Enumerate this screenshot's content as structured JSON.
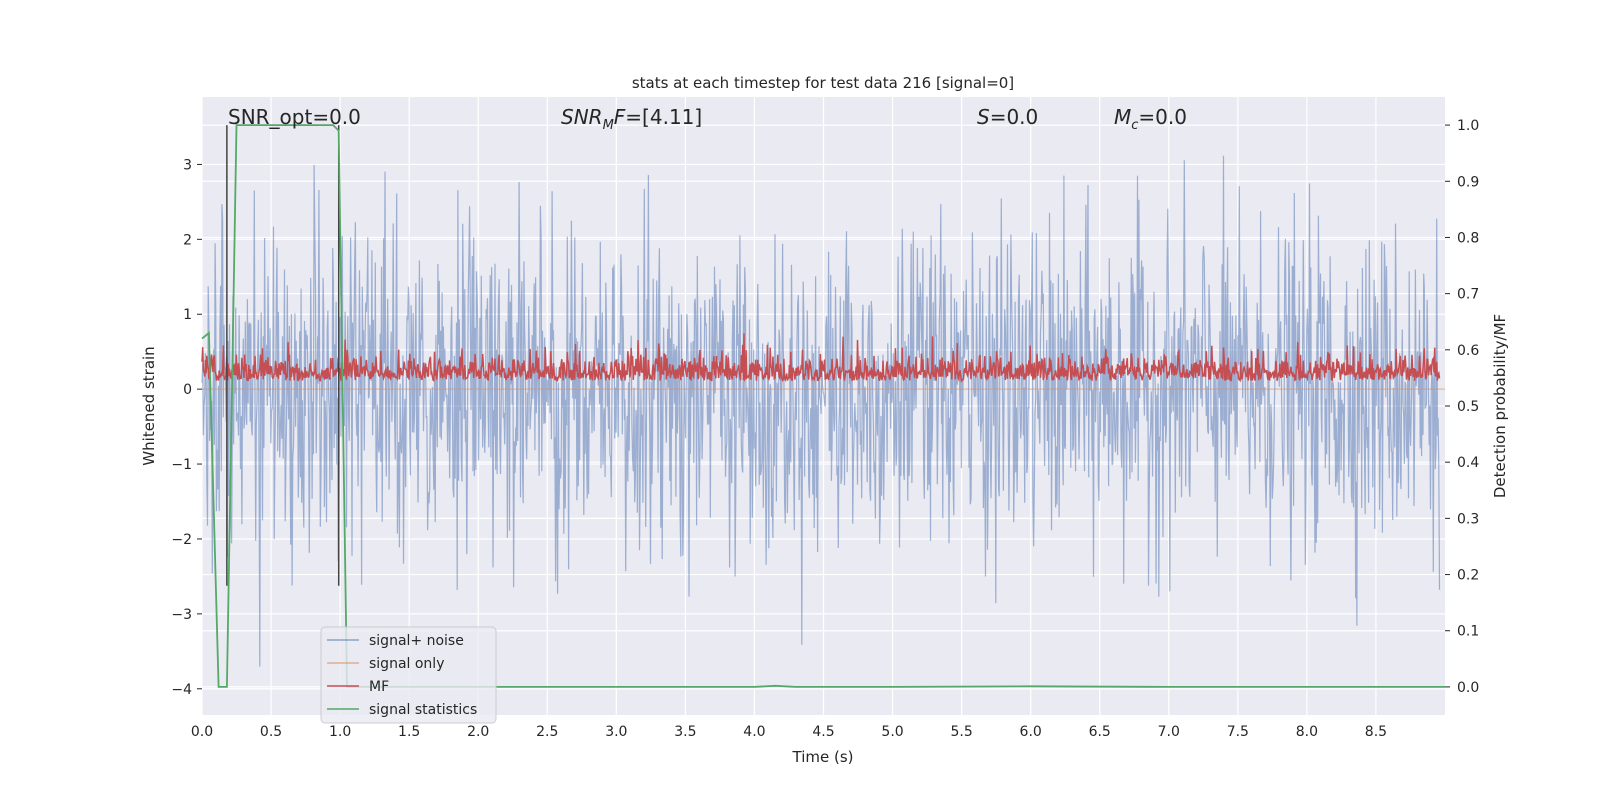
{
  "chart_data": {
    "type": "line",
    "title": "stats at each timestep for test data 216 [signal=0]",
    "xlabel": "Time (s)",
    "ylabel": "Whitened strain",
    "y2label": "Detection probability/MF",
    "xlim": [
      0.0,
      9.0
    ],
    "ylim": [
      -4.35,
      3.9
    ],
    "y2lim": [
      -0.05,
      1.05
    ],
    "grid": true,
    "legend_loc": "lower left",
    "xticks": [
      "0.0",
      "0.5",
      "1.0",
      "1.5",
      "2.0",
      "2.5",
      "3.0",
      "3.5",
      "4.0",
      "4.5",
      "5.0",
      "5.5",
      "6.0",
      "6.5",
      "7.0",
      "7.5",
      "8.0",
      "8.5"
    ],
    "yticks": [
      "−4",
      "−3",
      "−2",
      "−1",
      "0",
      "1",
      "2",
      "3"
    ],
    "y2ticks": [
      "0.0",
      "0.1",
      "0.2",
      "0.3",
      "0.4",
      "0.5",
      "0.6",
      "0.7",
      "0.8",
      "0.9",
      "1.0"
    ],
    "annotations": [
      {
        "id": "snr_opt",
        "text": "SNR_opt=0.0"
      },
      {
        "id": "snr_mf",
        "text": "=[4.11]",
        "math_base": "SNR",
        "math_sub": "M",
        "math_tail": "F"
      },
      {
        "id": "s",
        "text": "=0.0",
        "math_base": "S"
      },
      {
        "id": "mc",
        "text": "=0.0",
        "math_base": "M",
        "math_sub": "c"
      }
    ],
    "vertical_markers_x": [
      0.18,
      0.99
    ],
    "series": [
      {
        "name": "signal+ noise",
        "color": "#4c72b0",
        "alpha": 0.5,
        "axis": "left",
        "description_values": {
          "n_samples": 1800,
          "typical_low": -1.8,
          "typical_high": 1.8,
          "max": 3.5,
          "min": -3.9
        }
      },
      {
        "name": "signal only",
        "color": "#dd8452",
        "axis": "left",
        "x": [
          0.0,
          9.0
        ],
        "y": [
          0.0,
          0.0
        ]
      },
      {
        "name": "MF",
        "color": "#c44e52",
        "axis": "right",
        "description_values": {
          "n_samples": 1800,
          "baseline": 0.545,
          "typical_high": 0.6,
          "max": 0.645
        }
      },
      {
        "name": "signal statistics",
        "color": "#55a868",
        "axis": "right",
        "x": [
          0.0,
          0.05,
          0.12,
          0.18,
          0.25,
          0.3,
          0.5,
          0.8,
          0.95,
          0.99,
          1.05,
          1.1,
          1.5,
          2.0,
          3.0,
          4.0,
          4.15,
          4.3,
          5.0,
          6.0,
          7.0,
          8.0,
          9.0
        ],
        "y": [
          0.62,
          0.63,
          0.0,
          0.0,
          1.0,
          1.0,
          1.0,
          1.0,
          1.0,
          0.99,
          0.0,
          0.0,
          0.0,
          0.0,
          0.0,
          0.0,
          0.002,
          0.0,
          0.0,
          0.001,
          0.0,
          0.0,
          0.0
        ]
      }
    ]
  },
  "legend": {
    "items": [
      {
        "label": "signal+ noise",
        "color": "#4c72b0"
      },
      {
        "label": "signal only",
        "color": "#dd8452"
      },
      {
        "label": "MF",
        "color": "#c44e52"
      },
      {
        "label": "signal statistics",
        "color": "#55a868"
      }
    ]
  }
}
